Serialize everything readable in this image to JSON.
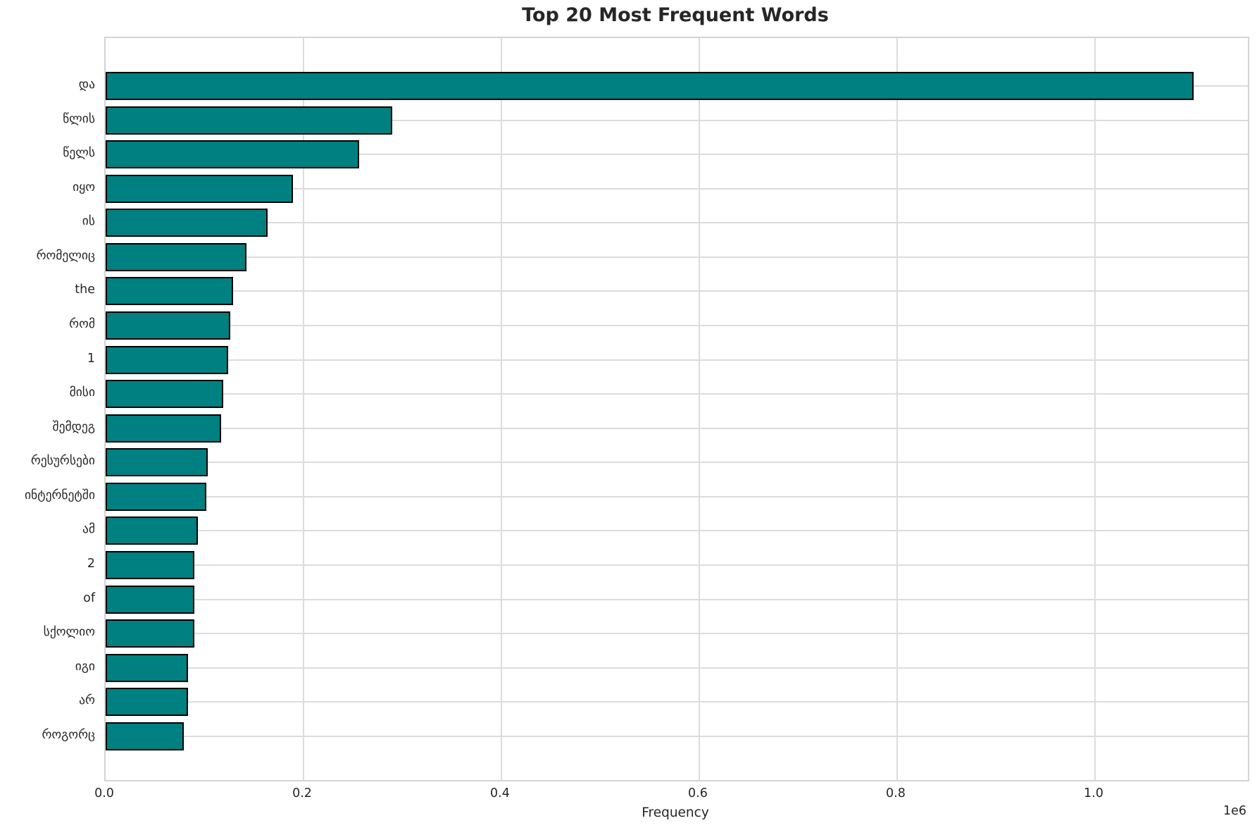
{
  "chart_data": {
    "type": "bar",
    "orientation": "horizontal",
    "title": "Top 20 Most Frequent Words",
    "xlabel": "Frequency",
    "ylabel": "",
    "offset_text": "1e6",
    "categories": [
      "და",
      "წლის",
      "წელს",
      "იყო",
      "ის",
      "რომელიც",
      "the",
      "რომ",
      "1",
      "მისი",
      "შემდეგ",
      "რესურსები",
      "ინტერნეტში",
      "ამ",
      "2",
      "of",
      "სქოლიო",
      "იგი",
      "არ",
      "როგორც"
    ],
    "values": [
      1100000,
      290000,
      256000,
      189000,
      164000,
      142000,
      129000,
      126000,
      124000,
      119000,
      117000,
      103000,
      102000,
      93000,
      90000,
      89800,
      89600,
      83400,
      83000,
      79000
    ],
    "xlim": [
      0,
      1154500
    ],
    "x_ticks": [
      0,
      200000,
      400000,
      600000,
      800000,
      1000000
    ],
    "x_tick_labels": [
      "0.0",
      "0.2",
      "0.4",
      "0.6",
      "0.8",
      "1.0"
    ],
    "bar_color": "#008080",
    "bar_edge_color": "#000000",
    "grid": true,
    "grid_color": "#dcdcdc",
    "legend": "none"
  }
}
